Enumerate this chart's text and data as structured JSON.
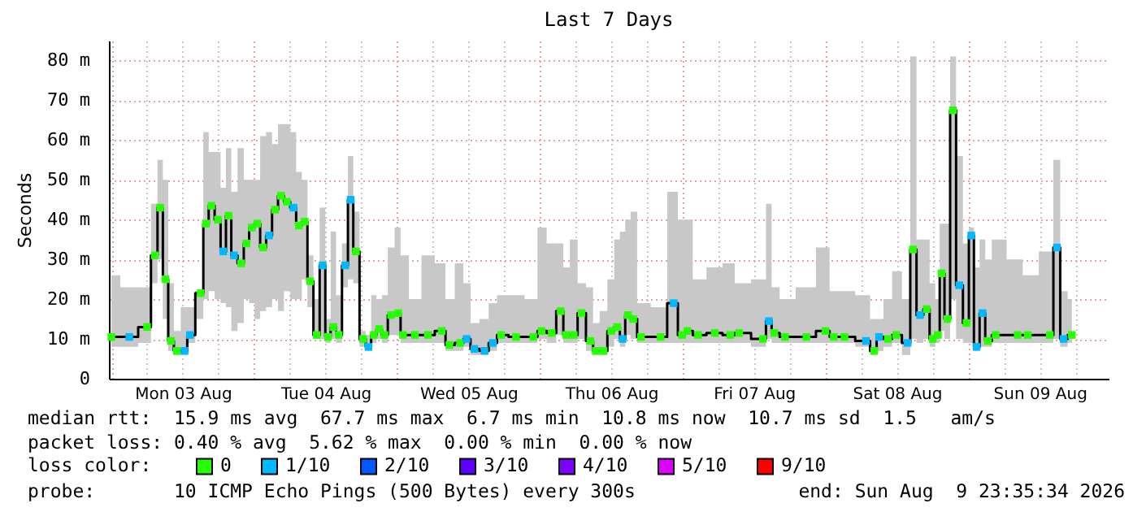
{
  "chart_data": {
    "type": "step",
    "title": "Last 7 Days",
    "ylabel": "Seconds",
    "legend_title": "loss color:",
    "legend": "bottom",
    "grid": true,
    "xlim": [
      "2026-08-02T23:35",
      "2026-08-09T23:35"
    ],
    "xticks": [
      {
        "value": "2026-08-03T12:00",
        "label": "Mon 03 Aug"
      },
      {
        "value": "2026-08-04T12:00",
        "label": "Tue 04 Aug"
      },
      {
        "value": "2026-08-05T12:00",
        "label": "Wed 05 Aug"
      },
      {
        "value": "2026-08-06T12:00",
        "label": "Thu 06 Aug"
      },
      {
        "value": "2026-08-07T12:00",
        "label": "Fri 07 Aug"
      },
      {
        "value": "2026-08-08T12:00",
        "label": "Sat 08 Aug"
      },
      {
        "value": "2026-08-09T12:00",
        "label": "Sun 09 Aug"
      }
    ],
    "ylim": [
      0,
      85
    ],
    "yticks": [
      0,
      {
        "value": 10,
        "label": "10 m"
      },
      {
        "value": 20,
        "label": "20 m"
      },
      {
        "value": 30,
        "label": "30 m"
      },
      {
        "value": 40,
        "label": "40 m"
      },
      {
        "value": 50,
        "label": "50 m"
      },
      {
        "value": 60,
        "label": "60 m"
      },
      {
        "value": 70,
        "label": "70 m"
      },
      {
        "value": 80,
        "label": "80 m"
      }
    ],
    "x": [
      "2026-08-03T00:00",
      "2026-08-03T03:00",
      "2026-08-03T06:00",
      "2026-08-03T07:18",
      "2026-08-03T08:12",
      "2026-08-03T09:06",
      "2026-08-03T10:00",
      "2026-08-03T11:00",
      "2026-08-03T12:18",
      "2026-08-03T13:12",
      "2026-08-03T15:00",
      "2026-08-03T15:54",
      "2026-08-03T16:48",
      "2026-08-03T17:54",
      "2026-08-03T18:48",
      "2026-08-03T19:42",
      "2026-08-03T20:36",
      "2026-08-03T21:48",
      "2026-08-03T22:42",
      "2026-08-03T23:36",
      "2026-08-04T00:30",
      "2026-08-04T01:30",
      "2026-08-04T02:30",
      "2026-08-04T03:30",
      "2026-08-04T04:30",
      "2026-08-04T05:30",
      "2026-08-04T06:36",
      "2026-08-04T07:30",
      "2026-08-04T08:30",
      "2026-08-04T09:24",
      "2026-08-04T10:30",
      "2026-08-04T11:30",
      "2026-08-04T12:24",
      "2026-08-04T13:18",
      "2026-08-04T14:12",
      "2026-08-04T15:18",
      "2026-08-04T16:12",
      "2026-08-04T17:06",
      "2026-08-04T18:18",
      "2026-08-04T19:12",
      "2026-08-04T20:06",
      "2026-08-04T21:00",
      "2026-08-04T21:54",
      "2026-08-04T23:00",
      "2026-08-05T00:12",
      "2026-08-05T01:00",
      "2026-08-05T03:00",
      "2026-08-05T05:12",
      "2026-08-05T07:30",
      "2026-08-05T08:48",
      "2026-08-05T10:36",
      "2026-08-05T11:42",
      "2026-08-05T13:00",
      "2026-08-05T14:42",
      "2026-08-05T16:06",
      "2026-08-05T17:30",
      "2026-08-05T20:00",
      "2026-08-05T22:54",
      "2026-08-06T00:18",
      "2026-08-06T02:00",
      "2026-08-06T03:30",
      "2026-08-06T04:24",
      "2026-08-06T05:42",
      "2026-08-06T07:00",
      "2026-08-06T08:30",
      "2026-08-06T09:24",
      "2026-08-06T10:42",
      "2026-08-06T12:00",
      "2026-08-06T13:00",
      "2026-08-06T13:54",
      "2026-08-06T14:48",
      "2026-08-06T15:42",
      "2026-08-06T17:00",
      "2026-08-06T20:18",
      "2026-08-06T22:30",
      "2026-08-06T23:54",
      "2026-08-07T00:48",
      "2026-08-07T02:36",
      "2026-08-07T05:24",
      "2026-08-07T08:00",
      "2026-08-07T09:30",
      "2026-08-07T13:30",
      "2026-08-07T14:30",
      "2026-08-07T15:24",
      "2026-08-07T17:12",
      "2026-08-07T20:48",
      "2026-08-08T00:00",
      "2026-08-08T01:24",
      "2026-08-08T03:12",
      "2026-08-08T06:48",
      "2026-08-08T08:12",
      "2026-08-08T09:00",
      "2026-08-08T10:30",
      "2026-08-08T11:54",
      "2026-08-08T13:48",
      "2026-08-08T14:42",
      "2026-08-08T15:54",
      "2026-08-08T17:00",
      "2026-08-08T18:00",
      "2026-08-08T18:54",
      "2026-08-08T19:30",
      "2026-08-08T20:30",
      "2026-08-08T21:24",
      "2026-08-08T22:30",
      "2026-08-08T23:42",
      "2026-08-09T00:30",
      "2026-08-09T01:24",
      "2026-08-09T02:24",
      "2026-08-09T03:18",
      "2026-08-09T04:36",
      "2026-08-09T08:18",
      "2026-08-09T10:00",
      "2026-08-09T13:42",
      "2026-08-09T14:54",
      "2026-08-09T16:00",
      "2026-08-09T17:24"
    ],
    "series": [
      {
        "color": "#000000",
        "values": [
          10.5,
          10.5,
          13,
          31,
          43,
          25,
          9.5,
          7,
          7,
          11,
          21.5,
          39,
          43.5,
          40,
          32,
          41,
          31,
          29,
          34,
          38,
          39,
          33,
          36,
          42.5,
          46,
          44.5,
          43,
          38.5,
          39.5,
          24.5,
          11,
          28.5,
          10.5,
          13,
          11,
          28.5,
          45,
          32,
          10,
          8,
          11,
          12.5,
          11,
          16,
          16.5,
          11,
          11,
          11,
          12,
          8.5,
          9,
          10,
          7.5,
          7,
          9,
          11,
          10.5,
          10.5,
          12,
          11.5,
          17,
          11,
          11,
          16.5,
          9.5,
          7,
          7,
          12,
          13,
          10,
          16,
          15,
          10.5,
          10.5,
          19,
          11,
          12,
          11,
          11.5,
          11,
          11.5,
          10,
          14.5,
          11.5,
          10.5,
          10.5,
          12,
          10.5,
          10.5,
          9.5,
          7,
          10.5,
          10,
          11,
          9,
          32.5,
          16,
          17.5,
          10,
          11,
          26.5,
          15,
          67.5,
          23.5,
          14,
          36,
          8,
          16.5,
          9.5,
          11,
          11,
          11,
          11,
          33,
          10,
          11
        ],
        "lower": [
          8,
          8,
          9,
          24,
          30,
          15,
          7,
          6,
          6,
          9,
          15,
          20,
          22,
          20,
          19,
          18,
          12,
          14,
          20,
          19,
          15,
          17,
          18,
          20,
          17,
          22,
          20,
          20,
          25,
          18,
          10,
          10,
          9,
          10,
          9,
          23,
          25,
          24,
          8,
          7,
          9,
          10,
          9,
          11,
          11,
          9,
          9,
          9,
          9,
          7,
          7,
          8,
          6,
          6,
          7,
          9,
          9,
          9,
          10,
          9,
          11,
          9,
          9,
          10,
          7,
          6,
          6,
          8,
          10,
          8,
          11,
          10,
          9,
          9,
          9,
          9,
          9,
          9,
          9,
          9,
          9,
          8,
          10,
          9,
          9,
          9,
          9,
          9,
          9,
          8,
          6,
          7,
          8,
          9,
          6,
          10,
          9,
          10,
          8,
          9,
          12,
          10,
          20,
          10,
          9,
          9,
          7,
          8,
          8,
          9,
          9,
          9,
          9,
          10,
          8,
          9
        ],
        "upper": [
          26,
          23,
          23,
          44,
          55,
          50,
          24,
          12,
          18,
          18,
          22,
          62,
          57,
          57,
          48,
          58,
          47,
          58,
          50,
          50,
          50,
          61,
          62,
          59,
          64,
          64,
          62,
          52,
          50,
          31,
          20,
          43,
          15,
          37,
          21,
          34,
          56,
          42,
          12,
          11,
          21,
          20,
          21,
          33,
          38,
          31,
          20,
          31,
          29,
          20,
          29,
          24,
          14,
          15,
          19,
          21,
          21,
          20,
          38,
          34,
          34,
          28,
          35,
          24,
          23,
          14,
          17,
          25,
          35,
          37,
          40,
          42,
          19,
          18,
          47,
          40,
          40,
          25,
          28,
          29,
          24,
          25,
          44,
          23,
          20,
          23,
          33,
          22,
          22,
          21,
          15,
          15,
          20,
          27,
          20,
          81,
          35,
          35,
          24,
          20,
          39,
          39,
          81,
          56,
          34,
          38,
          28,
          35,
          30,
          35,
          30,
          26,
          32,
          55,
          22,
          20
        ]
      },
      {
        "type": "scatter",
        "name": "0",
        "color": "#26ff00",
        "marker": "square",
        "x": [
          "2026-08-03T00:00",
          "2026-08-03T06:00",
          "2026-08-03T07:18",
          "2026-08-03T08:12",
          "2026-08-03T09:06",
          "2026-08-03T10:00",
          "2026-08-03T11:00",
          "2026-08-03T15:00",
          "2026-08-03T15:54",
          "2026-08-03T16:48",
          "2026-08-03T17:54",
          "2026-08-03T19:42",
          "2026-08-03T21:48",
          "2026-08-03T22:42",
          "2026-08-03T23:36",
          "2026-08-04T00:30",
          "2026-08-04T01:30",
          "2026-08-04T03:30",
          "2026-08-04T04:30",
          "2026-08-04T05:30",
          "2026-08-04T07:30",
          "2026-08-04T08:30",
          "2026-08-04T09:24",
          "2026-08-04T10:30",
          "2026-08-04T12:24",
          "2026-08-04T13:18",
          "2026-08-04T14:12",
          "2026-08-04T17:06",
          "2026-08-04T18:18",
          "2026-08-04T20:06",
          "2026-08-04T21:00",
          "2026-08-04T21:54",
          "2026-08-04T23:00",
          "2026-08-05T00:12",
          "2026-08-05T01:00",
          "2026-08-05T03:00",
          "2026-08-05T05:12",
          "2026-08-05T07:30",
          "2026-08-05T08:48",
          "2026-08-05T10:36",
          "2026-08-05T17:30",
          "2026-08-05T20:00",
          "2026-08-05T22:54",
          "2026-08-06T00:18",
          "2026-08-06T02:00",
          "2026-08-06T03:30",
          "2026-08-06T04:24",
          "2026-08-06T05:42",
          "2026-08-06T07:00",
          "2026-08-06T08:30",
          "2026-08-06T09:24",
          "2026-08-06T10:42",
          "2026-08-06T12:00",
          "2026-08-06T13:00",
          "2026-08-06T14:48",
          "2026-08-06T15:42",
          "2026-08-06T17:00",
          "2026-08-06T20:18",
          "2026-08-06T23:54",
          "2026-08-07T00:48",
          "2026-08-07T02:36",
          "2026-08-07T05:24",
          "2026-08-07T08:00",
          "2026-08-07T09:30",
          "2026-08-07T13:30",
          "2026-08-07T15:24",
          "2026-08-07T17:12",
          "2026-08-07T20:48",
          "2026-08-08T00:00",
          "2026-08-08T01:24",
          "2026-08-08T03:12",
          "2026-08-08T08:12",
          "2026-08-08T10:30",
          "2026-08-08T11:54",
          "2026-08-08T14:42",
          "2026-08-08T17:00",
          "2026-08-08T18:00",
          "2026-08-08T18:54",
          "2026-08-08T19:30",
          "2026-08-08T20:30",
          "2026-08-08T21:24",
          "2026-08-08T23:42",
          "2026-08-09T03:18",
          "2026-08-09T04:36",
          "2026-08-09T08:18",
          "2026-08-09T10:00",
          "2026-08-09T13:42",
          "2026-08-09T17:24"
        ],
        "values": [
          10.5,
          13,
          31,
          43,
          25,
          9.5,
          7,
          21.5,
          39,
          43.5,
          40,
          41,
          29,
          34,
          38,
          39,
          33,
          42.5,
          46,
          44.5,
          38.5,
          39.5,
          24.5,
          11,
          10.5,
          13,
          11,
          32,
          10,
          11,
          12.5,
          11,
          16,
          16.5,
          11,
          11,
          11,
          12,
          8.5,
          9,
          11,
          10.5,
          10.5,
          12,
          11.5,
          17,
          11,
          11,
          16.5,
          9.5,
          7,
          7,
          12,
          13,
          16,
          15,
          10.5,
          10.5,
          11,
          12,
          11,
          11.5,
          11,
          11.5,
          10,
          11.5,
          10.5,
          10.5,
          12,
          10.5,
          10.5,
          7,
          10,
          11,
          32.5,
          17.5,
          10,
          11,
          26.5,
          15,
          67.5,
          14,
          9.5,
          11,
          11,
          11,
          11,
          11
        ]
      },
      {
        "type": "scatter",
        "name": "1/10",
        "color": "#00b8ff",
        "marker": "square",
        "x": [
          "2026-08-03T03:00",
          "2026-08-03T12:18",
          "2026-08-03T13:12",
          "2026-08-03T18:48",
          "2026-08-03T20:36",
          "2026-08-04T02:30",
          "2026-08-04T06:36",
          "2026-08-04T11:30",
          "2026-08-04T15:18",
          "2026-08-04T16:12",
          "2026-08-04T19:12",
          "2026-08-05T11:42",
          "2026-08-05T13:00",
          "2026-08-05T14:42",
          "2026-08-05T16:06",
          "2026-08-06T13:54",
          "2026-08-06T22:30",
          "2026-08-07T14:30",
          "2026-08-08T06:48",
          "2026-08-08T09:00",
          "2026-08-08T13:48",
          "2026-08-08T15:54",
          "2026-08-08T22:30",
          "2026-08-09T00:30",
          "2026-08-09T01:24",
          "2026-08-09T02:24",
          "2026-08-09T14:54",
          "2026-08-09T16:00"
        ],
        "values": [
          10.5,
          7,
          11,
          32,
          31,
          36,
          43,
          28.5,
          28.5,
          45,
          8,
          10,
          7.5,
          7,
          9,
          10,
          19,
          14.5,
          9.5,
          10.5,
          9,
          16,
          23.5,
          36,
          8,
          16.5,
          33,
          10
        ]
      },
      {
        "type": "scatter",
        "name": "2/10",
        "color": "#0059ff",
        "marker": "square",
        "values": [
          null,
          null,
          null,
          null,
          null,
          null,
          null,
          null,
          null,
          null,
          null,
          null,
          null,
          null,
          null,
          null,
          null,
          null,
          null,
          null,
          null,
          null,
          null,
          null,
          null,
          null,
          null,
          null,
          null,
          null,
          null,
          null,
          null,
          null,
          null,
          null,
          null,
          null,
          null,
          null,
          null,
          null,
          null,
          null,
          null,
          null,
          null,
          null,
          null,
          null,
          null,
          null,
          null,
          null,
          null,
          null,
          null,
          null,
          null,
          null,
          null,
          null,
          null,
          null,
          null,
          null,
          null,
          null,
          null,
          null,
          null,
          null,
          null,
          null,
          null,
          null,
          null,
          null,
          null,
          null,
          null,
          null,
          null,
          null,
          null,
          null,
          null,
          null,
          null,
          null,
          null,
          null,
          null,
          null,
          null,
          null,
          null,
          null,
          null,
          null,
          null,
          null,
          null,
          null,
          null,
          null,
          null,
          null,
          null,
          null,
          null,
          null,
          null,
          null,
          null,
          null
        ]
      },
      {
        "type": "scatter",
        "name": "3/10",
        "color": "#5e00ff",
        "marker": "square",
        "values": [
          null,
          null,
          null,
          null,
          null,
          null,
          null,
          null,
          null,
          null,
          null,
          null,
          null,
          null,
          null,
          null,
          null,
          null,
          null,
          null,
          null,
          null,
          null,
          null,
          null,
          null,
          null,
          null,
          null,
          null,
          null,
          null,
          null,
          null,
          null,
          null,
          null,
          null,
          null,
          null,
          null,
          null,
          null,
          null,
          null,
          null,
          null,
          null,
          null,
          null,
          null,
          null,
          null,
          null,
          null,
          null,
          null,
          null,
          null,
          null,
          null,
          null,
          null,
          null,
          null,
          null,
          null,
          null,
          null,
          null,
          null,
          null,
          null,
          null,
          null,
          null,
          null,
          null,
          null,
          null,
          null,
          null,
          null,
          null,
          null,
          null,
          null,
          null,
          null,
          null,
          null,
          null,
          null,
          null,
          null,
          null,
          null,
          null,
          null,
          null,
          null,
          null,
          null,
          null,
          null,
          null,
          null,
          null,
          null,
          null,
          null,
          null,
          null,
          null,
          null,
          null
        ]
      },
      {
        "type": "scatter",
        "name": "4/10",
        "color": "#7e00ff",
        "marker": "square",
        "values": [
          null,
          null,
          null,
          null,
          null,
          null,
          null,
          null,
          null,
          null,
          null,
          null,
          null,
          null,
          null,
          null,
          null,
          null,
          null,
          null,
          null,
          null,
          null,
          null,
          null,
          null,
          null,
          null,
          null,
          null,
          null,
          null,
          null,
          null,
          null,
          null,
          null,
          null,
          null,
          null,
          null,
          null,
          null,
          null,
          null,
          null,
          null,
          null,
          null,
          null,
          null,
          null,
          null,
          null,
          null,
          null,
          null,
          null,
          null,
          null,
          null,
          null,
          null,
          null,
          null,
          null,
          null,
          null,
          null,
          null,
          null,
          null,
          null,
          null,
          null,
          null,
          null,
          null,
          null,
          null,
          null,
          null,
          null,
          null,
          null,
          null,
          null,
          null,
          null,
          null,
          null,
          null,
          null,
          null,
          null,
          null,
          null,
          null,
          null,
          null,
          null,
          null,
          null,
          null,
          null,
          null,
          null,
          null,
          null,
          null,
          null,
          null,
          null,
          null,
          null,
          null
        ]
      },
      {
        "type": "scatter",
        "name": "5/10",
        "color": "#dd00ff",
        "marker": "square",
        "values": [
          null,
          null,
          null,
          null,
          null,
          null,
          null,
          null,
          null,
          null,
          null,
          null,
          null,
          null,
          null,
          null,
          null,
          null,
          null,
          null,
          null,
          null,
          null,
          null,
          null,
          null,
          null,
          null,
          null,
          null,
          null,
          null,
          null,
          null,
          null,
          null,
          null,
          null,
          null,
          null,
          null,
          null,
          null,
          null,
          null,
          null,
          null,
          null,
          null,
          null,
          null,
          null,
          null,
          null,
          null,
          null,
          null,
          null,
          null,
          null,
          null,
          null,
          null,
          null,
          null,
          null,
          null,
          null,
          null,
          null,
          null,
          null,
          null,
          null,
          null,
          null,
          null,
          null,
          null,
          null,
          null,
          null,
          null,
          null,
          null,
          null,
          null,
          null,
          null,
          null,
          null,
          null,
          null,
          null,
          null,
          null,
          null,
          null,
          null,
          null,
          null,
          null,
          null,
          null,
          null,
          null,
          null,
          null,
          null,
          null,
          null,
          null,
          null,
          null,
          null,
          null
        ]
      },
      {
        "type": "scatter",
        "name": "9/10",
        "color": "#ff0000",
        "marker": "square",
        "values": [
          null,
          null,
          null,
          null,
          null,
          null,
          null,
          null,
          null,
          null,
          null,
          null,
          null,
          null,
          null,
          null,
          null,
          null,
          null,
          null,
          null,
          null,
          null,
          null,
          null,
          null,
          null,
          null,
          null,
          null,
          null,
          null,
          null,
          null,
          null,
          null,
          null,
          null,
          null,
          null,
          null,
          null,
          null,
          null,
          null,
          null,
          null,
          null,
          null,
          null,
          null,
          null,
          null,
          null,
          null,
          null,
          null,
          null,
          null,
          null,
          null,
          null,
          null,
          null,
          null,
          null,
          null,
          null,
          null,
          null,
          null,
          null,
          null,
          null,
          null,
          null,
          null,
          null,
          null,
          null,
          null,
          null,
          null,
          null,
          null,
          null,
          null,
          null,
          null,
          null,
          null,
          null,
          null,
          null,
          null,
          null,
          null,
          null,
          null,
          null,
          null,
          null,
          null,
          null,
          null,
          null,
          null,
          null,
          null,
          null,
          null,
          null,
          null,
          null,
          null,
          null
        ]
      }
    ],
    "annotations": [
      "median rtt:  15.9 ms avg  67.7 ms max  6.7 ms min  10.8 ms now  10.7 ms sd  1.5   am/s",
      "packet loss: 0.40 % avg  5.62 % max  0.00 % min  0.00 % now",
      "probe:       10 ICMP Echo Pings (500 Bytes) every 300s",
      "end: Sun Aug  9 23:35:34 2026"
    ]
  }
}
